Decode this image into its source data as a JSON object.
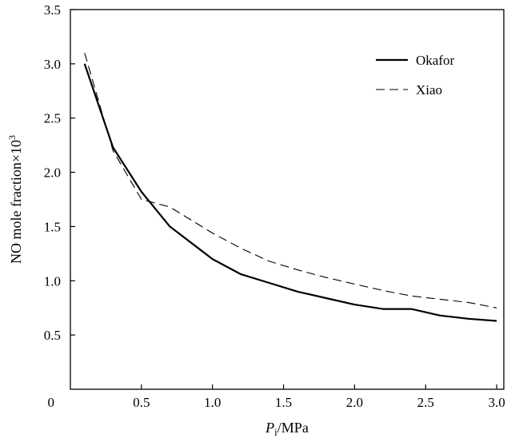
{
  "chart_data": {
    "type": "line",
    "xlabel": {
      "italic": "P",
      "sub": "i",
      "rest": "/MPa"
    },
    "ylabel": {
      "main": "NO mole fraction×10",
      "sup": "3"
    },
    "xlim": [
      0,
      3.05
    ],
    "ylim": [
      0,
      3.5
    ],
    "x_ticks": [
      0.5,
      1.0,
      1.5,
      2.0,
      2.5,
      3.0
    ],
    "x_tick_labels": [
      "0.5",
      "1.0",
      "1.5",
      "2.0",
      "2.5",
      "3.0"
    ],
    "y_ticks": [
      0.5,
      1.0,
      1.5,
      2.0,
      2.5,
      3.0,
      3.5
    ],
    "y_tick_labels": [
      "0.5",
      "1.0",
      "1.5",
      "2.0",
      "2.5",
      "3.0",
      "3.5"
    ],
    "origin_label": "0",
    "grid": false,
    "legend_position": "top-right",
    "series": [
      {
        "name": "Okafor",
        "style": "solid",
        "color": "#000000",
        "x": [
          0.1,
          0.3,
          0.5,
          0.7,
          1.0,
          1.2,
          1.4,
          1.6,
          1.8,
          2.0,
          2.2,
          2.4,
          2.6,
          2.8,
          3.0
        ],
        "y": [
          3.0,
          2.23,
          1.82,
          1.5,
          1.2,
          1.06,
          0.98,
          0.9,
          0.84,
          0.78,
          0.74,
          0.74,
          0.68,
          0.65,
          0.63
        ]
      },
      {
        "name": "Xiao",
        "style": "dashed",
        "color": "#000000",
        "x": [
          0.1,
          0.3,
          0.5,
          0.7,
          1.0,
          1.2,
          1.4,
          1.6,
          1.8,
          2.0,
          2.2,
          2.4,
          2.6,
          2.8,
          3.0
        ],
        "y": [
          3.1,
          2.2,
          1.75,
          1.68,
          1.44,
          1.3,
          1.18,
          1.1,
          1.03,
          0.97,
          0.91,
          0.86,
          0.83,
          0.8,
          0.75
        ]
      }
    ]
  }
}
